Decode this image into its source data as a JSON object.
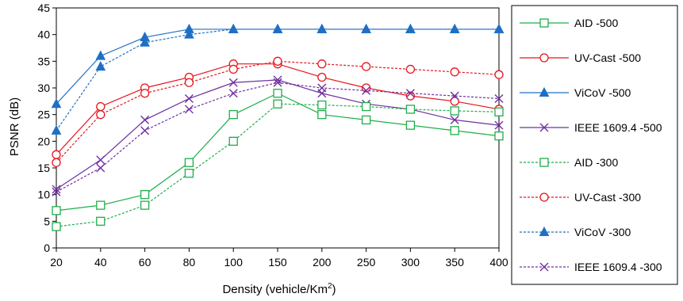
{
  "chart_data": {
    "type": "line",
    "xlabel": "Density (vehicle/Km",
    "xlabel_sup": "2",
    "xlabel_end": ")",
    "ylabel": "PSNR (dB)",
    "ylim": [
      0,
      45
    ],
    "yticks": [
      0,
      5,
      10,
      15,
      20,
      25,
      30,
      35,
      40,
      45
    ],
    "x": [
      "20",
      "40",
      "60",
      "80",
      "100",
      "150",
      "200",
      "250",
      "300",
      "350",
      "400"
    ],
    "grid": false,
    "legend_position": "right",
    "series": [
      {
        "name": "AID -500",
        "color": "#1fae4b",
        "marker": "square",
        "dash": "solid",
        "values": [
          7,
          8,
          10,
          16,
          25,
          29,
          25,
          24,
          23,
          22,
          21
        ]
      },
      {
        "name": "UV-Cast -500",
        "color": "#e8141c",
        "marker": "circle",
        "dash": "solid",
        "values": [
          17.5,
          26.5,
          30,
          32,
          34.5,
          34.5,
          32,
          30,
          28.5,
          27.5,
          26
        ]
      },
      {
        "name": "ViCoV -500",
        "color": "#1f6fc4",
        "marker": "triangle",
        "dash": "solid",
        "values": [
          27,
          36,
          39.5,
          41,
          41,
          41,
          41,
          41,
          41,
          41,
          41
        ]
      },
      {
        "name": "IEEE 1609.4 -500",
        "color": "#7030a0",
        "marker": "x",
        "dash": "solid",
        "values": [
          11,
          16.5,
          24,
          28,
          31,
          31.5,
          29,
          27,
          26,
          24,
          23
        ]
      },
      {
        "name": "AID -300",
        "color": "#1fae4b",
        "marker": "square",
        "dash": "dashed",
        "values": [
          4,
          5,
          8,
          14,
          20,
          27,
          26.8,
          26.5,
          26,
          25.7,
          25.5
        ]
      },
      {
        "name": "UV-Cast -300",
        "color": "#e8141c",
        "marker": "circle",
        "dash": "dashed",
        "values": [
          16,
          25,
          29,
          31,
          33.5,
          35,
          34.5,
          34,
          33.5,
          33,
          32.5
        ]
      },
      {
        "name": "ViCoV -300",
        "color": "#1f6fc4",
        "marker": "triangle",
        "dash": "dashed",
        "values": [
          22,
          34,
          38.5,
          40,
          41,
          41,
          41,
          41,
          41,
          41,
          41
        ]
      },
      {
        "name": "IEEE 1609.4 -300",
        "color": "#7030a0",
        "marker": "x",
        "dash": "dashed",
        "values": [
          10.5,
          15,
          22,
          26,
          29,
          31,
          30,
          29.5,
          29,
          28.5,
          28
        ]
      }
    ]
  }
}
